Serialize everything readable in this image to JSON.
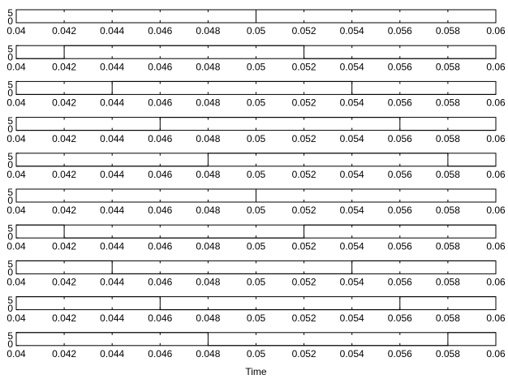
{
  "chart_data": [
    {
      "type": "line",
      "x": [
        0.04,
        0.05,
        0.05,
        0.06,
        0.06
      ],
      "series": [
        {
          "color": "#000000",
          "values": [
            5,
            5,
            0,
            0,
            5
          ]
        }
      ],
      "xlim": [
        0.04,
        0.06
      ],
      "ylim": [
        0,
        5
      ],
      "xticks": [
        0.04,
        0.042,
        0.044,
        0.046,
        0.048,
        0.05,
        0.052,
        0.054,
        0.056,
        0.058,
        0.06
      ],
      "yticks": [
        0,
        5
      ]
    },
    {
      "type": "line",
      "x": [
        0.04,
        0.042,
        0.042,
        0.052,
        0.052,
        0.06
      ],
      "series": [
        {
          "color": "#000000",
          "values": [
            0,
            0,
            5,
            5,
            0,
            0
          ]
        }
      ],
      "xlim": [
        0.04,
        0.06
      ],
      "ylim": [
        0,
        5
      ],
      "xticks": [
        0.04,
        0.042,
        0.044,
        0.046,
        0.048,
        0.05,
        0.052,
        0.054,
        0.056,
        0.058,
        0.06
      ],
      "yticks": [
        0,
        5
      ]
    },
    {
      "type": "line",
      "x": [
        0.04,
        0.044,
        0.044,
        0.054,
        0.054,
        0.06
      ],
      "series": [
        {
          "color": "#000000",
          "values": [
            0,
            0,
            5,
            5,
            0,
            0
          ]
        }
      ],
      "xlim": [
        0.04,
        0.06
      ],
      "ylim": [
        0,
        5
      ],
      "xticks": [
        0.04,
        0.042,
        0.044,
        0.046,
        0.048,
        0.05,
        0.052,
        0.054,
        0.056,
        0.058,
        0.06
      ],
      "yticks": [
        0,
        5
      ]
    },
    {
      "type": "line",
      "x": [
        0.04,
        0.046,
        0.046,
        0.056,
        0.056,
        0.06
      ],
      "series": [
        {
          "color": "#000000",
          "values": [
            0,
            0,
            5,
            5,
            0,
            0
          ]
        }
      ],
      "xlim": [
        0.04,
        0.06
      ],
      "ylim": [
        0,
        5
      ],
      "xticks": [
        0.04,
        0.042,
        0.044,
        0.046,
        0.048,
        0.05,
        0.052,
        0.054,
        0.056,
        0.058,
        0.06
      ],
      "yticks": [
        0,
        5
      ]
    },
    {
      "type": "line",
      "x": [
        0.04,
        0.048,
        0.048,
        0.058,
        0.058,
        0.06
      ],
      "series": [
        {
          "color": "#000000",
          "values": [
            0,
            0,
            5,
            5,
            0,
            0
          ]
        }
      ],
      "xlim": [
        0.04,
        0.06
      ],
      "ylim": [
        0,
        5
      ],
      "xticks": [
        0.04,
        0.042,
        0.044,
        0.046,
        0.048,
        0.05,
        0.052,
        0.054,
        0.056,
        0.058,
        0.06
      ],
      "yticks": [
        0,
        5
      ]
    },
    {
      "type": "line",
      "x": [
        0.04,
        0.05,
        0.05,
        0.06
      ],
      "series": [
        {
          "color": "#000000",
          "values": [
            0,
            0,
            5,
            5
          ]
        }
      ],
      "xlim": [
        0.04,
        0.06
      ],
      "ylim": [
        0,
        5
      ],
      "xticks": [
        0.04,
        0.042,
        0.044,
        0.046,
        0.048,
        0.05,
        0.052,
        0.054,
        0.056,
        0.058,
        0.06
      ],
      "yticks": [
        0,
        5
      ]
    },
    {
      "type": "line",
      "x": [
        0.04,
        0.042,
        0.042,
        0.052,
        0.052,
        0.06
      ],
      "series": [
        {
          "color": "#000000",
          "values": [
            5,
            5,
            0,
            0,
            5,
            5
          ]
        }
      ],
      "xlim": [
        0.04,
        0.06
      ],
      "ylim": [
        0,
        5
      ],
      "xticks": [
        0.04,
        0.042,
        0.044,
        0.046,
        0.048,
        0.05,
        0.052,
        0.054,
        0.056,
        0.058,
        0.06
      ],
      "yticks": [
        0,
        5
      ]
    },
    {
      "type": "line",
      "x": [
        0.04,
        0.044,
        0.044,
        0.054,
        0.054,
        0.06
      ],
      "series": [
        {
          "color": "#000000",
          "values": [
            5,
            5,
            0,
            0,
            5,
            5
          ]
        }
      ],
      "xlim": [
        0.04,
        0.06
      ],
      "ylim": [
        0,
        5
      ],
      "xticks": [
        0.04,
        0.042,
        0.044,
        0.046,
        0.048,
        0.05,
        0.052,
        0.054,
        0.056,
        0.058,
        0.06
      ],
      "yticks": [
        0,
        5
      ]
    },
    {
      "type": "line",
      "x": [
        0.04,
        0.046,
        0.046,
        0.056,
        0.056,
        0.06
      ],
      "series": [
        {
          "color": "#000000",
          "values": [
            5,
            5,
            0,
            0,
            5,
            5
          ]
        }
      ],
      "xlim": [
        0.04,
        0.06
      ],
      "ylim": [
        0,
        5
      ],
      "xticks": [
        0.04,
        0.042,
        0.044,
        0.046,
        0.048,
        0.05,
        0.052,
        0.054,
        0.056,
        0.058,
        0.06
      ],
      "yticks": [
        0,
        5
      ]
    },
    {
      "type": "line",
      "x": [
        0.04,
        0.048,
        0.048,
        0.058,
        0.058,
        0.06
      ],
      "series": [
        {
          "color": "#000000",
          "values": [
            5,
            5,
            0,
            0,
            5,
            5
          ]
        }
      ],
      "xlim": [
        0.04,
        0.06
      ],
      "ylim": [
        0,
        5
      ],
      "xticks": [
        0.04,
        0.042,
        0.044,
        0.046,
        0.048,
        0.05,
        0.052,
        0.054,
        0.056,
        0.058,
        0.06
      ],
      "yticks": [
        0,
        5
      ],
      "xlabel": "Time"
    }
  ]
}
